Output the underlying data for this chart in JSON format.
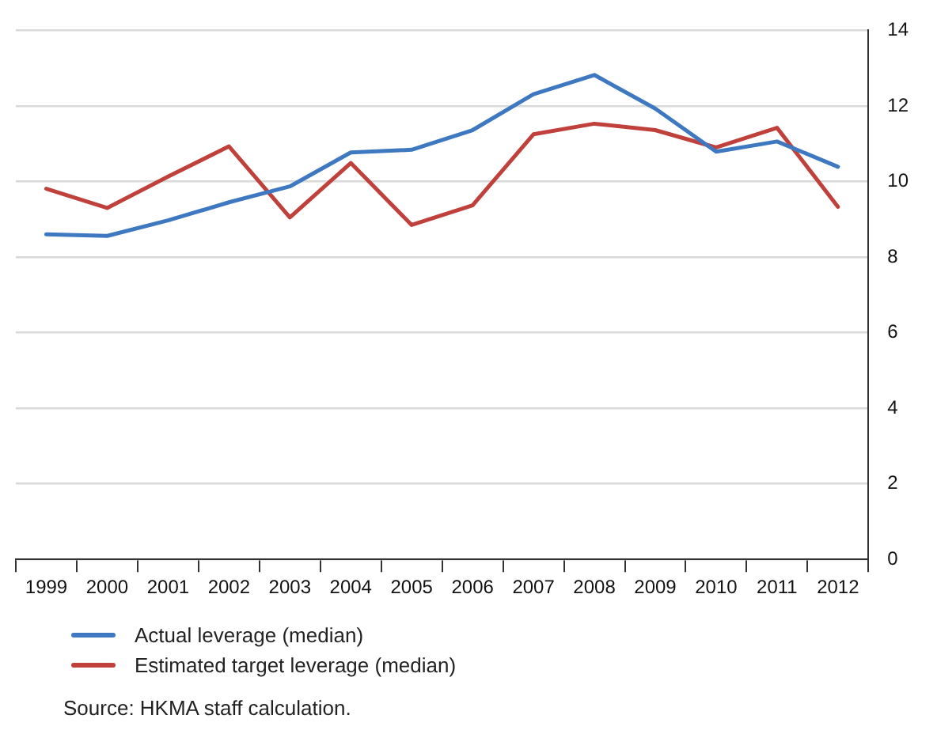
{
  "chart_data": {
    "type": "line",
    "categories": [
      "1999",
      "2000",
      "2001",
      "2002",
      "2003",
      "2004",
      "2005",
      "2006",
      "2007",
      "2008",
      "2009",
      "2010",
      "2011",
      "2012"
    ],
    "series": [
      {
        "name": "Actual leverage (median)",
        "color": "#3d78c0",
        "values": [
          8.6,
          8.56,
          8.97,
          9.45,
          9.87,
          10.77,
          10.84,
          11.36,
          12.31,
          12.82,
          11.93,
          10.79,
          11.06,
          10.39
        ]
      },
      {
        "name": "Estimated target leverage (median)",
        "color": "#c0403c",
        "values": [
          9.81,
          9.3,
          10.13,
          10.93,
          9.05,
          10.49,
          8.85,
          9.37,
          11.25,
          11.53,
          11.36,
          10.9,
          11.42,
          9.33
        ]
      }
    ],
    "ylim": [
      0,
      14
    ],
    "yticks": [
      0,
      2,
      4,
      6,
      8,
      10,
      12,
      14
    ],
    "grid": "y",
    "legend": "bottom",
    "marker": "none",
    "line_style": "solid",
    "annotations": [
      "Source: HKMA staff calculation."
    ]
  }
}
